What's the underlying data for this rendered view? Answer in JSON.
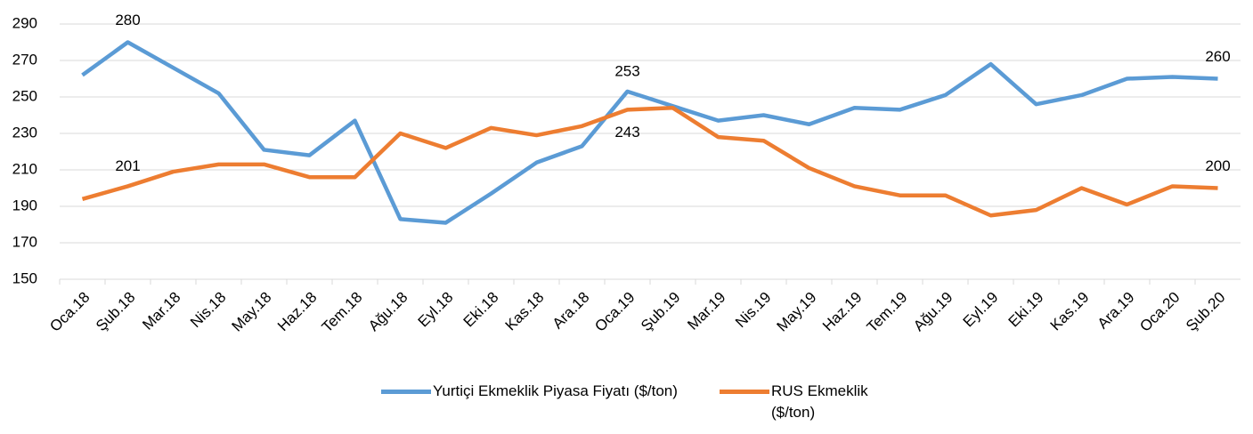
{
  "chart_data": {
    "type": "line",
    "categories": [
      "Oca.18",
      "Şub.18",
      "Mar.18",
      "Nis.18",
      "May.18",
      "Haz.18",
      "Tem.18",
      "Ağu.18",
      "Eyl.18",
      "Eki.18",
      "Kas.18",
      "Ara.18",
      "Oca.19",
      "Şub.19",
      "Mar.19",
      "Nis.19",
      "May.19",
      "Haz.19",
      "Tem.19",
      "Ağu.19",
      "Eyl.19",
      "Eki.19",
      "Kas.19",
      "Ara.19",
      "Oca.20",
      "Şub.20"
    ],
    "series": [
      {
        "name": "Yurtiçi Ekmeklik Piyasa Fiyatı ($/ton)",
        "color": "#5b9bd5",
        "values": [
          262,
          280,
          266,
          252,
          221,
          218,
          237,
          183,
          181,
          197,
          214,
          223,
          253,
          245,
          237,
          240,
          235,
          244,
          243,
          251,
          268,
          246,
          251,
          260,
          261,
          260
        ]
      },
      {
        "name": "RUS Ekmeklik ($/ton)",
        "color": "#ed7d31",
        "values": [
          194,
          201,
          209,
          213,
          213,
          206,
          206,
          230,
          222,
          233,
          229,
          234,
          243,
          244,
          228,
          226,
          211,
          201,
          196,
          196,
          185,
          188,
          200,
          191,
          201,
          200
        ]
      }
    ],
    "ylim": [
      150,
      290
    ],
    "yticks": [
      150,
      170,
      190,
      210,
      230,
      250,
      270,
      290
    ],
    "grid": true,
    "legend": "bottom"
  }
}
